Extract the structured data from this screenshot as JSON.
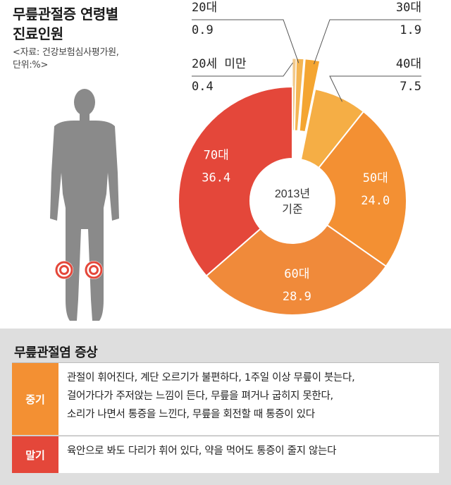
{
  "header": {
    "title_line1": "무릎관절증 연령별",
    "title_line2": "진료인원",
    "source_line1": "<자료: 건강보험심사평가원,",
    "source_line2": "단위:%>"
  },
  "chart_data": {
    "type": "pie",
    "style": "donut",
    "center_label_line1": "2013년",
    "center_label_line2": "기준",
    "slices": [
      {
        "label": "20세 미만",
        "value": 0.4,
        "color": "#f3c98a",
        "exploded": true
      },
      {
        "label": "20대",
        "value": 0.9,
        "color": "#f4b553",
        "exploded": true
      },
      {
        "label": "30대",
        "value": 1.9,
        "color": "#f4a531",
        "exploded": true
      },
      {
        "label": "40대",
        "value": 7.5,
        "color": "#f5ae45",
        "exploded": false
      },
      {
        "label": "50대",
        "value": 24.0,
        "color": "#f39033",
        "exploded": false
      },
      {
        "label": "60대",
        "value": 28.9,
        "color": "#f08a3a",
        "exploded": false
      },
      {
        "label": "70대",
        "value": 36.4,
        "color": "#e4473a",
        "exploded": false
      }
    ]
  },
  "symptoms": {
    "title": "무릎관절염 증상",
    "rows": [
      {
        "tag": "중기",
        "tag_color": "#f39033",
        "lines": [
          "관절이 휘어진다, 계단 오르기가 불편하다, 1주일 이상 무릎이 붓는다,",
          "걸어가다가 주저앉는 느낌이 든다, 무릎을 펴거나 굽히지 못한다,",
          "소리가 나면서 통증을 느낀다, 무릎을 회전할 때 통증이 있다"
        ]
      },
      {
        "tag": "말기",
        "tag_color": "#e4473a",
        "lines": [
          "육안으로 봐도 다리가 휘어 있다, 약을 먹어도 통증이 줄지 않는다"
        ]
      }
    ]
  }
}
